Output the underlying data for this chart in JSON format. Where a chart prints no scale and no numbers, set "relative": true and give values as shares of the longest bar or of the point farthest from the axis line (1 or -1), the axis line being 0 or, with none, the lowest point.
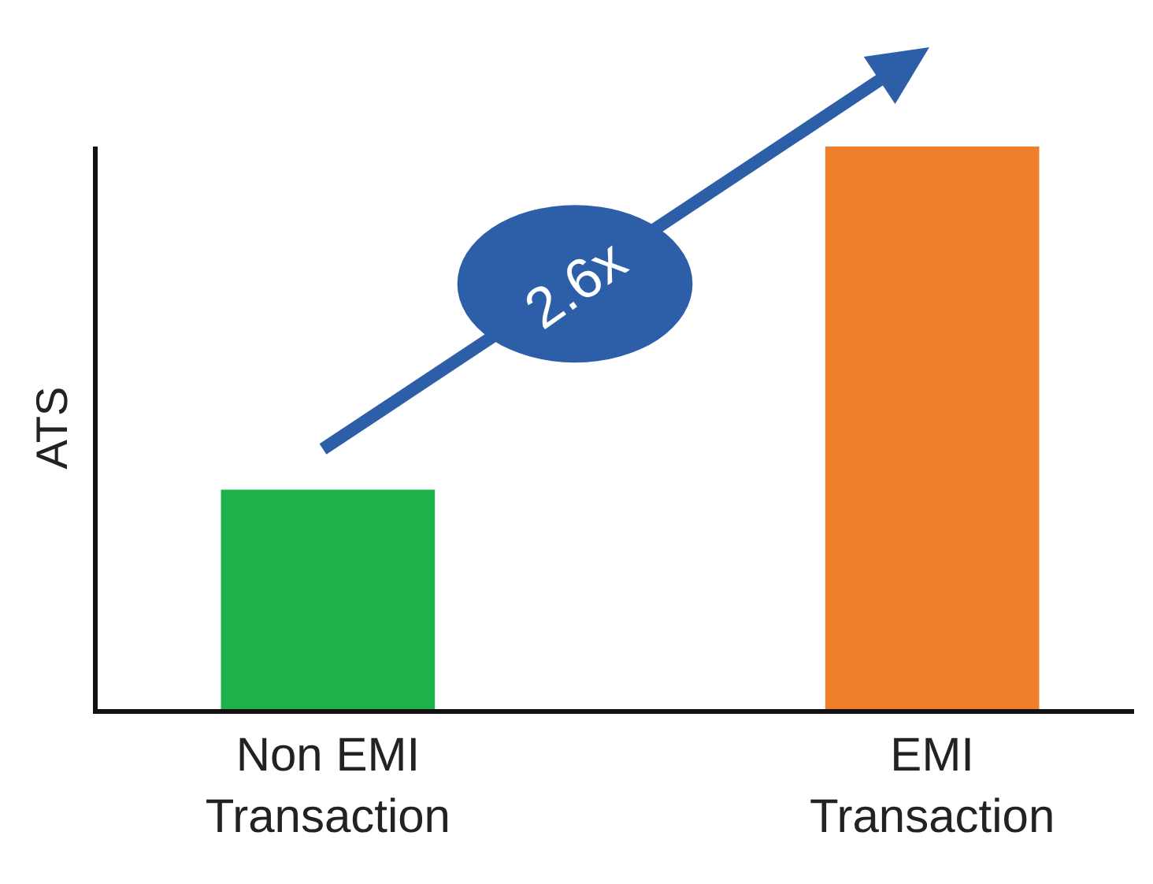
{
  "chart_data": {
    "type": "bar",
    "relative": true,
    "ylabel": "ATS",
    "categories": [
      "Non EMI\nTransaction",
      "EMI\nTransaction"
    ],
    "values": [
      0.39,
      1
    ],
    "colors": [
      "#1db14b",
      "#f07f2c"
    ],
    "annotations": [
      "2.6x"
    ]
  }
}
